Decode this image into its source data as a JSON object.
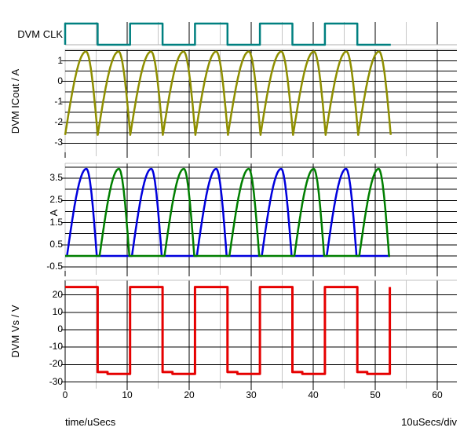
{
  "axis": {
    "x_label": "time/uSecs",
    "x_scale": "10uSecs/div",
    "x_tick_labels": [
      "0",
      "10",
      "20",
      "30",
      "40",
      "50",
      "60"
    ],
    "x_major_ticks": [
      0,
      10,
      20,
      30,
      40,
      50,
      60
    ],
    "x_minor_ticks": [
      5,
      15,
      25,
      35,
      45,
      55
    ],
    "x_min": 0,
    "x_max": 63.2
  },
  "colors": {
    "background": "#FFFFFF",
    "grid_major": "#000000",
    "grid_minor": "#C6C6C6",
    "strip_border": "#C0C0C0",
    "text": "#000000"
  },
  "chart_data": [
    {
      "id": "clk",
      "type": "digital",
      "label": "DVM CLK",
      "color": "#008080",
      "high_segments": [
        [
          0,
          5.235
        ],
        [
          10.47,
          15.705
        ],
        [
          20.94,
          26.175
        ],
        [
          31.41,
          36.645
        ],
        [
          41.88,
          47.115
        ]
      ],
      "t_end": 52.5
    },
    {
      "id": "icout",
      "type": "line",
      "ylabel": "DVM ICout / A",
      "color": "#8F8F00",
      "y_tick_labels": [
        "1",
        "0",
        "-1",
        "-2",
        "-3"
      ],
      "y_tick_values": [
        1,
        0,
        -1,
        -2,
        -3
      ],
      "y_grid_step": 0.5,
      "waveform": {
        "kind": "resonant-sine",
        "period": 5.25,
        "cycles": 10,
        "t_start": 0,
        "t_end": 52.5,
        "y_min": -2.6,
        "y_max": 1.45,
        "rise_frac": 0.64
      }
    },
    {
      "id": "a",
      "type": "line",
      "ylabel": "A",
      "y_tick_labels": [
        "3.5",
        "2.5",
        "1.5",
        "0.5",
        "-0.5"
      ],
      "y_tick_values": [
        3.5,
        2.5,
        1.5,
        0.5,
        -0.5
      ],
      "y_grid_step": 0.5,
      "series": [
        {
          "name": "blue-pulses",
          "color": "#0000DD",
          "baseline": 0,
          "peak": 3.92,
          "rise_frac": 0.65,
          "pulse_width": 4.8,
          "pulse_starts": [
            0.3,
            10.77,
            21.24,
            31.71,
            42.18
          ],
          "t_end": 52.4
        },
        {
          "name": "green-pulses",
          "color": "#007F00",
          "baseline": 0,
          "peak": 3.92,
          "rise_frac": 0.65,
          "pulse_width": 4.8,
          "pulse_starts": [
            5.55,
            16.02,
            26.49,
            36.96,
            47.43
          ],
          "t_end": 52.4
        }
      ]
    },
    {
      "id": "vs",
      "type": "line",
      "ylabel": "DVM Vs / V",
      "color": "#E60000",
      "y_tick_labels": [
        "20",
        "10",
        "0",
        "-10",
        "-20",
        "-30"
      ],
      "y_tick_values": [
        20,
        10,
        0,
        -10,
        -20,
        -30
      ],
      "y_grid_step": 10,
      "waveform": {
        "kind": "square",
        "period": 10.47,
        "duty": 0.5,
        "cycles": 5,
        "high": 24.5,
        "low_ledge": -24.3,
        "low": -25.3,
        "ledge_duration": 1.6,
        "t_end": 52.35,
        "ends_with_rise": true
      }
    }
  ]
}
